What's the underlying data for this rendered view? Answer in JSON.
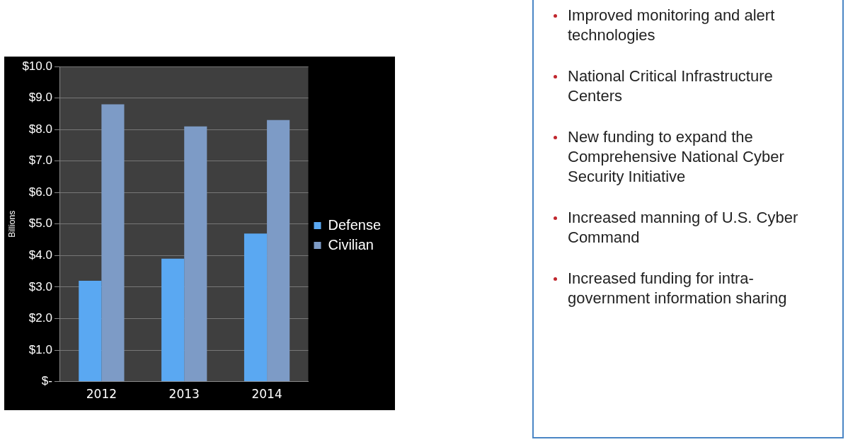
{
  "chart_data": {
    "type": "bar",
    "categories": [
      "2012",
      "2013",
      "2014"
    ],
    "series": [
      {
        "name": "Defense",
        "color": "#5aa8f2",
        "values": [
          3.2,
          3.9,
          4.7
        ]
      },
      {
        "name": "Civilian",
        "color": "#7d9bc6",
        "values": [
          8.8,
          8.1,
          8.3
        ]
      }
    ],
    "ylabel": "Billions",
    "ylim": [
      0,
      10
    ],
    "yticks": [
      {
        "value": 0,
        "label": "$-"
      },
      {
        "value": 1,
        "label": "$1.0"
      },
      {
        "value": 2,
        "label": "$2.0"
      },
      {
        "value": 3,
        "label": "$3.0"
      },
      {
        "value": 4,
        "label": "$4.0"
      },
      {
        "value": 5,
        "label": "$5.0"
      },
      {
        "value": 6,
        "label": "$6.0"
      },
      {
        "value": 7,
        "label": "$7.0"
      },
      {
        "value": 8,
        "label": "$8.0"
      },
      {
        "value": 9,
        "label": "$9.0"
      },
      {
        "value": 10,
        "label": "$10.0"
      }
    ],
    "grid": "y",
    "legend": "right",
    "annotations": [
      "Improved monitoring and alert technologies",
      "National Critical Infrastructure Centers",
      "New funding to expand the Comprehensive National Cyber Security Initiative",
      "Increased manning of U.S. Cyber Command",
      "Increased funding for intra-government information sharing"
    ]
  }
}
